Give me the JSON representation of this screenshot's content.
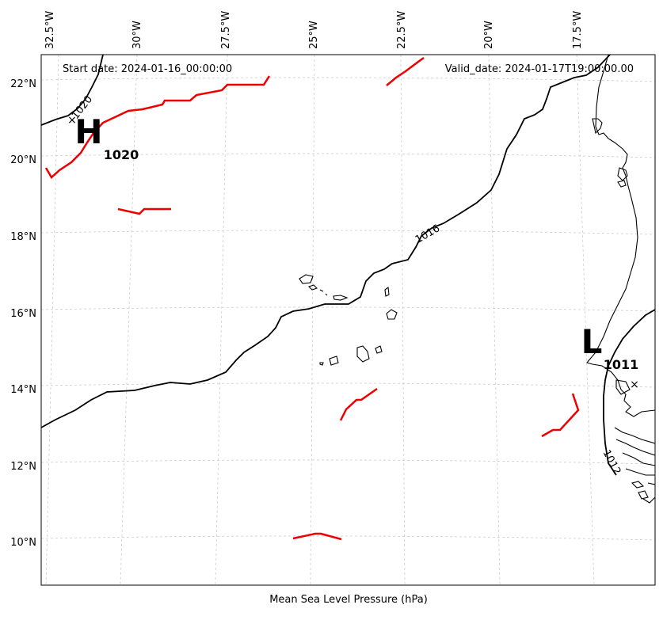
{
  "header": {
    "start_date": "Start date: 2024-01-16_00:00:00",
    "valid_date": "Valid_date: 2024-01-17T19:00:00.00"
  },
  "xlabel": "Mean Sea Level Pressure (hPa)",
  "lon_ticks": [
    "32.5°W",
    "30°W",
    "27.5°W",
    "25°W",
    "22.5°W",
    "20°W",
    "17.5°W"
  ],
  "lat_ticks": [
    "22°N",
    "20°N",
    "18°N",
    "16°N",
    "14°N",
    "12°N",
    "10°N"
  ],
  "pressure_centers": [
    {
      "type": "H",
      "value": "1020"
    },
    {
      "type": "L",
      "value": "1011"
    }
  ],
  "isobar_labels": [
    "1020",
    "1016",
    "1012"
  ],
  "colors": {
    "isobar": "#000000",
    "front": "#ee0000",
    "grid": "#cccccc",
    "coast": "#000000"
  },
  "icons": [
    "high-pressure-marker",
    "low-pressure-marker"
  ]
}
